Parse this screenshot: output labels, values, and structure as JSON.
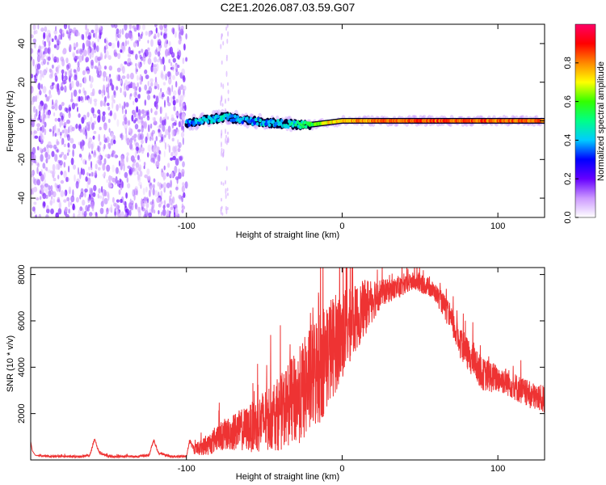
{
  "title": "C2E1.2026.087.03.59.G07",
  "chart_data": [
    {
      "type": "heatmap",
      "name": "spectrogram",
      "xlabel": "Height of straight line (km)",
      "ylabel": "Frequency (Hz)",
      "xlim": [
        -200,
        130
      ],
      "ylim": [
        -50,
        50
      ],
      "xticks": [
        -100,
        0,
        100
      ],
      "yticks": [
        -40,
        -20,
        0,
        20,
        40
      ],
      "xtick_labels": [
        "-100",
        "0",
        "100"
      ],
      "ytick_labels": [
        "-40",
        "-20",
        "0",
        "20",
        "40"
      ],
      "colorbar": {
        "label": "Normalized spectral amplitude",
        "range": [
          0,
          1
        ],
        "ticks": [
          0.0,
          0.2,
          0.4,
          0.6,
          0.8
        ],
        "tick_labels": [
          "0.0",
          "0.2",
          "0.4",
          "0.6",
          "0.8"
        ],
        "stops": [
          "#ffffff",
          "#cc99ff",
          "#6600ff",
          "#0000ff",
          "#00ccff",
          "#00ff88",
          "#33ff00",
          "#ffff00",
          "#ff8800",
          "#ff0000",
          "#ff0066"
        ]
      },
      "noise_region": {
        "x_range": [
          -200,
          -100
        ],
        "amplitude": 0.15
      },
      "ridge": [
        {
          "x": -100,
          "freq": -1,
          "amp": 0.35
        },
        {
          "x": -90,
          "freq": 0,
          "amp": 0.4
        },
        {
          "x": -75,
          "freq": 2,
          "amp": 0.42
        },
        {
          "x": -60,
          "freq": 0,
          "amp": 0.38
        },
        {
          "x": -45,
          "freq": -1,
          "amp": 0.4
        },
        {
          "x": -30,
          "freq": -2,
          "amp": 0.45
        },
        {
          "x": -20,
          "freq": -2,
          "amp": 0.55
        },
        {
          "x": -10,
          "freq": -1,
          "amp": 0.7
        },
        {
          "x": 0,
          "freq": 0,
          "amp": 0.75
        },
        {
          "x": 20,
          "freq": 0,
          "amp": 0.8
        },
        {
          "x": 50,
          "freq": 0,
          "amp": 0.85
        },
        {
          "x": 80,
          "freq": 0,
          "amp": 0.85
        },
        {
          "x": 110,
          "freq": 0,
          "amp": 0.82
        },
        {
          "x": 130,
          "freq": 0,
          "amp": 0.8
        }
      ]
    },
    {
      "type": "line",
      "name": "snr",
      "xlabel": "Height of straight line (km)",
      "ylabel": "SNR (10 * v/v)",
      "xlim": [
        -200,
        130
      ],
      "ylim": [
        0,
        8300
      ],
      "xticks": [
        -100,
        0,
        100
      ],
      "yticks": [
        2000,
        4000,
        6000,
        8000
      ],
      "xtick_labels": [
        "-100",
        "0",
        "100"
      ],
      "ytick_labels": [
        "2000",
        "4000",
        "6000",
        "8000"
      ],
      "color": "#ee3333",
      "x": [
        -200,
        -199,
        -197,
        -190,
        -170,
        -162,
        -159,
        -156,
        -150,
        -130,
        -124,
        -121,
        -118,
        -110,
        -100,
        -98,
        -95,
        -92,
        -85,
        -80,
        -75,
        -70,
        -65,
        -60,
        -55,
        -50,
        -45,
        -40,
        -35,
        -30,
        -25,
        -20,
        -15,
        -10,
        -5,
        0,
        5,
        10,
        15,
        20,
        25,
        30,
        35,
        40,
        45,
        50,
        55,
        60,
        65,
        70,
        75,
        80,
        85,
        90,
        95,
        100,
        105,
        110,
        115,
        120,
        125,
        130
      ],
      "y": [
        800,
        400,
        200,
        150,
        150,
        200,
        900,
        300,
        150,
        150,
        200,
        850,
        300,
        150,
        150,
        800,
        450,
        500,
        700,
        1000,
        1100,
        1200,
        1300,
        1350,
        1500,
        1700,
        1900,
        2000,
        2400,
        2600,
        3000,
        3500,
        4000,
        4500,
        5000,
        5400,
        5800,
        6200,
        6600,
        7000,
        7200,
        7300,
        7400,
        7500,
        7700,
        7600,
        7500,
        7200,
        6700,
        6000,
        5200,
        4600,
        4200,
        3700,
        3600,
        3500,
        3400,
        3200,
        3000,
        2800,
        2700,
        2600
      ],
      "noise_amplitude": [
        0,
        0,
        0,
        50,
        50,
        50,
        50,
        50,
        50,
        50,
        50,
        50,
        50,
        50,
        50,
        50,
        200,
        300,
        500,
        600,
        700,
        800,
        900,
        1000,
        1200,
        1400,
        1500,
        1600,
        1800,
        2000,
        2200,
        2400,
        2600,
        2400,
        2200,
        2000,
        1600,
        1400,
        1200,
        1000,
        600,
        500,
        500,
        400,
        400,
        400,
        400,
        400,
        500,
        600,
        700,
        700,
        700,
        700,
        700,
        600,
        600,
        600,
        600,
        600,
        600,
        600
      ]
    }
  ]
}
